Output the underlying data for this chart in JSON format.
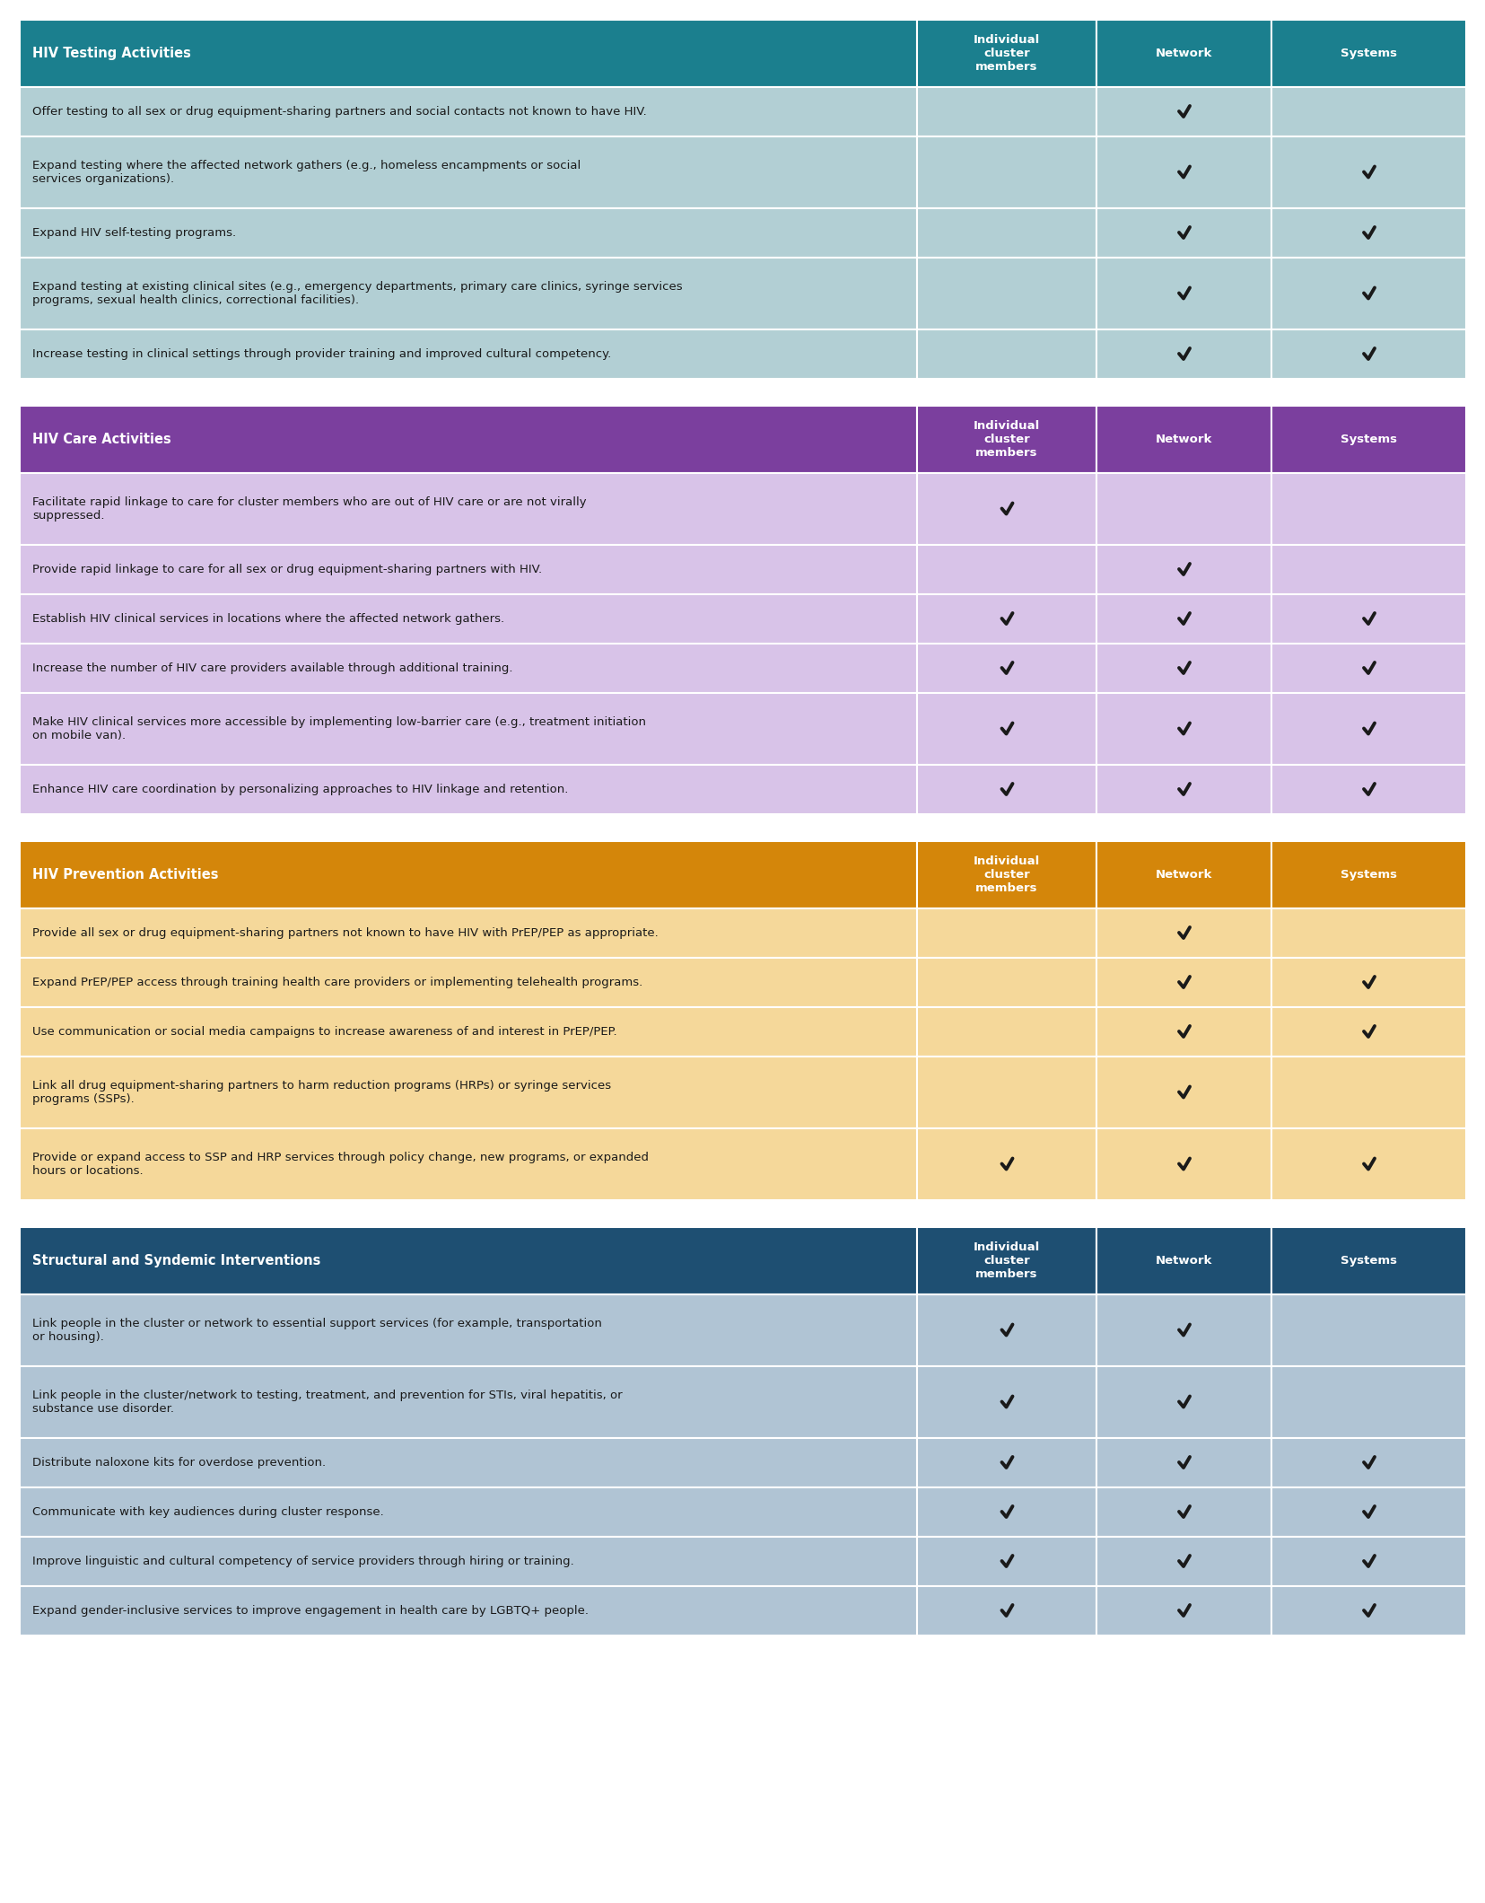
{
  "sections": [
    {
      "title": "HIV Testing Activities",
      "header_bg": "#1b7f8e",
      "row_bg_light": "#b2cfd4",
      "row_bg_dark": "#a3c4ca",
      "rows": [
        {
          "text": "Offer testing to all sex or drug equipment-sharing partners and social contacts not known to have HIV.",
          "lines": 1,
          "checks": [
            0,
            1,
            0
          ]
        },
        {
          "text": "Expand testing where the affected network gathers (e.g., homeless encampments or social\nservices organizations).",
          "lines": 2,
          "checks": [
            0,
            1,
            1
          ]
        },
        {
          "text": "Expand HIV self-testing programs.",
          "lines": 1,
          "checks": [
            0,
            1,
            1
          ]
        },
        {
          "text": "Expand testing at existing clinical sites (e.g., emergency departments, primary care clinics, syringe services\nprograms, sexual health clinics, correctional facilities).",
          "lines": 2,
          "checks": [
            0,
            1,
            1
          ]
        },
        {
          "text": "Increase testing in clinical settings through provider training and improved cultural competency.",
          "lines": 1,
          "checks": [
            0,
            1,
            1
          ]
        }
      ]
    },
    {
      "title": "HIV Care Activities",
      "header_bg": "#7b3f9e",
      "row_bg_light": "#d8c3e8",
      "row_bg_dark": "#ceb5e0",
      "rows": [
        {
          "text": "Facilitate rapid linkage to care for cluster members who are out of HIV care or are not virally\nsuppressed.",
          "lines": 2,
          "checks": [
            1,
            0,
            0
          ]
        },
        {
          "text": "Provide rapid linkage to care for all sex or drug equipment-sharing partners with HIV.",
          "lines": 1,
          "checks": [
            0,
            1,
            0
          ]
        },
        {
          "text": "Establish HIV clinical services in locations where the affected network gathers.",
          "lines": 1,
          "checks": [
            1,
            1,
            1
          ]
        },
        {
          "text": "Increase the number of HIV care providers available through additional training.",
          "lines": 1,
          "checks": [
            1,
            1,
            1
          ]
        },
        {
          "text": "Make HIV clinical services more accessible by implementing low-barrier care (e.g., treatment initiation\non mobile van).",
          "lines": 2,
          "checks": [
            1,
            1,
            1
          ]
        },
        {
          "text": "Enhance HIV care coordination by personalizing approaches to HIV linkage and retention.",
          "lines": 1,
          "checks": [
            1,
            1,
            1
          ]
        }
      ]
    },
    {
      "title": "HIV Prevention Activities",
      "header_bg": "#d4860a",
      "row_bg_light": "#f5d89a",
      "row_bg_dark": "#f0d08e",
      "rows": [
        {
          "text": "Provide all sex or drug equipment-sharing partners not known to have HIV with PrEP/PEP as appropriate.",
          "lines": 1,
          "checks": [
            0,
            1,
            0
          ]
        },
        {
          "text": "Expand PrEP/PEP access through training health care providers or implementing telehealth programs.",
          "lines": 1,
          "checks": [
            0,
            1,
            1
          ]
        },
        {
          "text": "Use communication or social media campaigns to increase awareness of and interest in PrEP/PEP.",
          "lines": 1,
          "checks": [
            0,
            1,
            1
          ]
        },
        {
          "text": "Link all drug equipment-sharing partners to harm reduction programs (HRPs) or syringe services\nprograms (SSPs).",
          "lines": 2,
          "checks": [
            0,
            1,
            0
          ]
        },
        {
          "text": "Provide or expand access to SSP and HRP services through policy change, new programs, or expanded\nhours or locations.",
          "lines": 2,
          "checks": [
            1,
            1,
            1
          ]
        }
      ]
    },
    {
      "title": "Structural and Syndemic Interventions",
      "header_bg": "#1e4f72",
      "row_bg_light": "#b0c4d4",
      "row_bg_dark": "#a4bac9",
      "rows": [
        {
          "text": "Link people in the cluster or network to essential support services (for example, transportation\nor housing).",
          "lines": 2,
          "checks": [
            1,
            1,
            0
          ]
        },
        {
          "text": "Link people in the cluster/network to testing, treatment, and prevention for STIs, viral hepatitis, or\nsubstance use disorder.",
          "lines": 2,
          "checks": [
            1,
            1,
            0
          ]
        },
        {
          "text": "Distribute naloxone kits for overdose prevention.",
          "lines": 1,
          "checks": [
            1,
            1,
            1
          ]
        },
        {
          "text": "Communicate with key audiences during cluster response.",
          "lines": 1,
          "checks": [
            1,
            1,
            1
          ]
        },
        {
          "text": "Improve linguistic and cultural competency of service providers through hiring or training.",
          "lines": 1,
          "checks": [
            1,
            1,
            1
          ]
        },
        {
          "text": "Expand gender-inclusive services to improve engagement in health care by LGBTQ+ people.",
          "lines": 1,
          "checks": [
            1,
            1,
            1
          ]
        }
      ]
    }
  ],
  "col_headers": [
    "Individual\ncluster\nmembers",
    "Network",
    "Systems"
  ],
  "page_bg": "#ffffff",
  "text_font_size": 9.5,
  "header_font_size": 10.5,
  "col_header_font_size": 9.5
}
